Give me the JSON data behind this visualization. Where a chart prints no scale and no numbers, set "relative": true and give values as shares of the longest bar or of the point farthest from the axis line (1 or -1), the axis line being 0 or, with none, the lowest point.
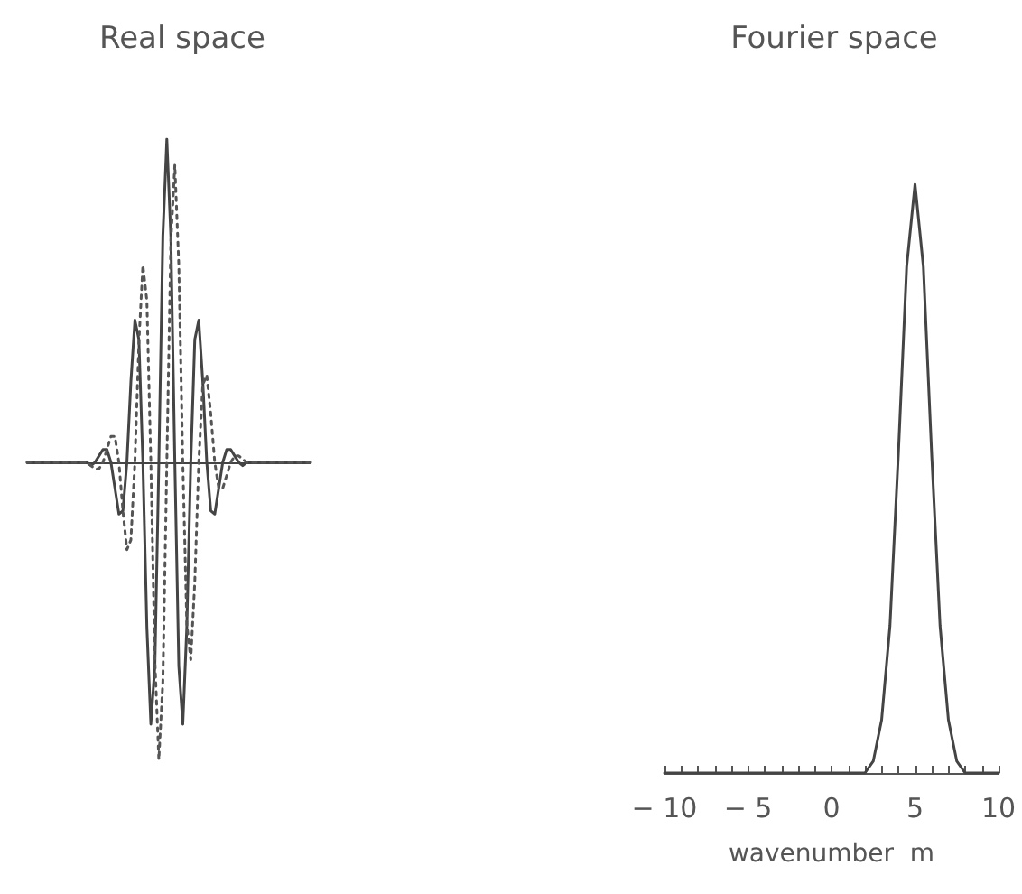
{
  "chart_data": [
    {
      "type": "line",
      "title": "Real space",
      "relative": true,
      "marker": "none",
      "categories": [
        null,
        null,
        null,
        null,
        null,
        null,
        null,
        null,
        null,
        null,
        null,
        null,
        null,
        null,
        null,
        null,
        null,
        null,
        null,
        null,
        null,
        null,
        null,
        null,
        null,
        null,
        null,
        null,
        null,
        null,
        null,
        null,
        null,
        null,
        null,
        null,
        null,
        null,
        null,
        null,
        null,
        null,
        null,
        null,
        null,
        null,
        null,
        null,
        null,
        null,
        null,
        null,
        null,
        null,
        null,
        null,
        null,
        null,
        null,
        null,
        null,
        null,
        null,
        null,
        null,
        null,
        null,
        null,
        null,
        null,
        null,
        null
      ],
      "series": [
        {
          "color": "#444444",
          "line_style": "solid",
          "values": [
            0,
            0,
            0,
            0,
            0,
            0,
            0,
            0,
            0,
            0,
            0,
            0,
            0,
            0,
            0,
            0,
            -0.01,
            0,
            0.02,
            0.04,
            0.04,
            0,
            -0.08,
            -0.16,
            -0.15,
            0,
            0.25,
            0.44,
            0.38,
            0,
            -0.51,
            -0.81,
            -0.63,
            0,
            0.7,
            1,
            0.7,
            0,
            -0.63,
            -0.81,
            -0.51,
            0,
            0.38,
            0.44,
            0.25,
            0,
            -0.15,
            -0.16,
            -0.08,
            0,
            0.04,
            0.04,
            0.02,
            0,
            -0.01,
            0,
            0,
            0,
            0,
            0,
            0,
            0,
            0,
            0,
            0,
            0,
            0,
            0,
            0,
            0,
            0,
            0
          ]
        },
        {
          "color": "#555555",
          "line_style": "dotted",
          "values": [
            0,
            0,
            0,
            0,
            0,
            0,
            0,
            0,
            0,
            0,
            0,
            0,
            0,
            0,
            0,
            0,
            -0.01,
            -0.02,
            -0.02,
            0,
            0.04,
            0.08,
            0.08,
            0,
            -0.15,
            -0.27,
            -0.24,
            0,
            0.37,
            0.61,
            0.5,
            0,
            -0.61,
            -0.92,
            -0.68,
            0,
            0.68,
            0.92,
            0.61,
            0,
            -0.5,
            -0.61,
            -0.37,
            0,
            0.24,
            0.27,
            0.15,
            0,
            -0.08,
            -0.08,
            -0.04,
            0,
            0.02,
            0.02,
            0.01,
            0,
            0,
            0,
            0,
            0,
            0,
            0,
            0,
            0,
            0,
            0,
            0,
            0,
            0,
            0,
            0,
            0
          ]
        }
      ]
    },
    {
      "type": "line",
      "title": "Fourier space",
      "xlabel": "wavenumber  m",
      "relative": true,
      "marker": "none",
      "line_style": "solid",
      "xlim": [
        -10,
        10
      ],
      "xticks": [
        -10,
        {
          "value": -9,
          "label": null
        },
        {
          "value": -8,
          "label": null
        },
        {
          "value": -7,
          "label": null
        },
        {
          "value": -6,
          "label": null
        },
        -5,
        {
          "value": -4,
          "label": null
        },
        {
          "value": -3,
          "label": null
        },
        {
          "value": -2,
          "label": null
        },
        {
          "value": -1,
          "label": null
        },
        0,
        {
          "value": 1,
          "label": null
        },
        {
          "value": 2,
          "label": null
        },
        {
          "value": 3,
          "label": null
        },
        {
          "value": 4,
          "label": null
        },
        5,
        {
          "value": 6,
          "label": null
        },
        {
          "value": 7,
          "label": null
        },
        {
          "value": 8,
          "label": null
        },
        {
          "value": 9,
          "label": null
        },
        10
      ],
      "tick_labels": "x",
      "x": [
        -10,
        0,
        1,
        2,
        2.5,
        3,
        3.5,
        4,
        4.5,
        5,
        5.5,
        6,
        6.5,
        7,
        7.5,
        8,
        9,
        10
      ],
      "series": [
        {
          "color": "#444444",
          "values": [
            0,
            0,
            0,
            0,
            0.02,
            0.09,
            0.25,
            0.54,
            0.86,
            1,
            0.86,
            0.54,
            0.25,
            0.09,
            0.02,
            0,
            0,
            0
          ]
        }
      ]
    }
  ]
}
